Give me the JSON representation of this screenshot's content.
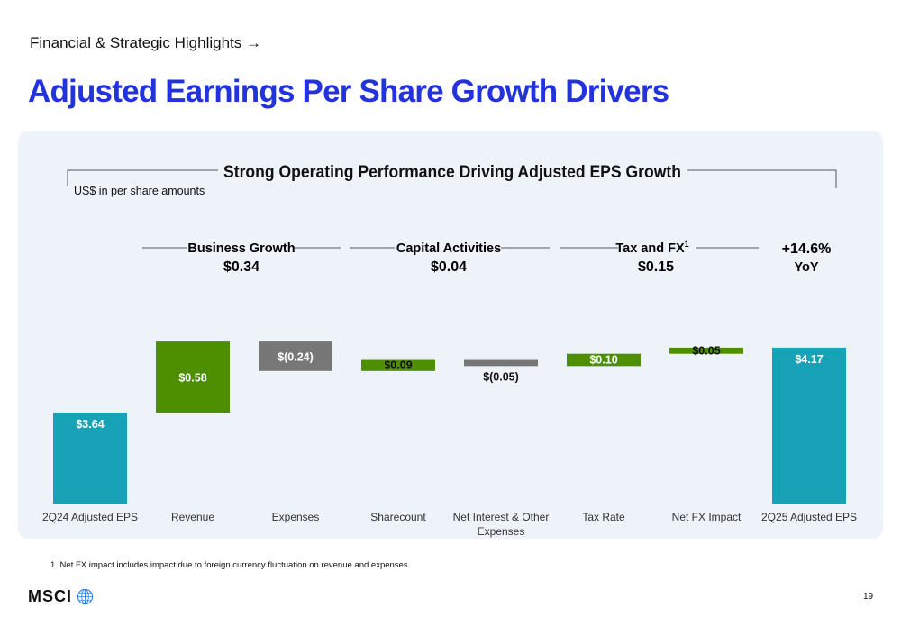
{
  "breadcrumb": "Financial & Strategic Highlights →",
  "title": "Adjusted Earnings Per Share Growth Drivers",
  "footnote": "1. Net FX impact includes impact due to foreign currency fluctuation on revenue and expenses.",
  "logo_text": "MSCI",
  "page_number": "19",
  "colors": {
    "title_blue": "#2233dd",
    "teal": "#17a2b8",
    "green": "#4d8f00",
    "gray": "#777777",
    "panel_bg": "#eef2f9"
  },
  "icons": {
    "logo": "globe-icon"
  },
  "chart_data": {
    "type": "bar",
    "variant": "waterfall",
    "title": "Strong Operating Performance Driving Adjusted EPS Growth",
    "subtitle": "US$ in per share amounts",
    "categories": [
      "2Q24 Adjusted EPS",
      "Revenue",
      "Expenses",
      "Sharecount",
      "Net Interest & Other Expenses",
      "Tax Rate",
      "Net FX Impact",
      "2Q25 Adjusted EPS"
    ],
    "values": [
      3.64,
      0.58,
      -0.24,
      0.09,
      -0.05,
      0.1,
      0.05,
      4.17
    ],
    "kinds": [
      "total",
      "increase",
      "decrease",
      "increase",
      "decrease",
      "increase",
      "increase",
      "total"
    ],
    "labels": [
      "$3.64",
      "$0.58",
      "$(0.24)",
      "$0.09",
      "$(0.05)",
      "$0.10",
      "$0.05",
      "$4.17"
    ],
    "groups": [
      {
        "name": "Business Growth",
        "value": "$0.34",
        "superscript": ""
      },
      {
        "name": "Capital Activities",
        "value": "$0.04",
        "superscript": ""
      },
      {
        "name": "Tax and FX",
        "value": "$0.15",
        "superscript": "1"
      }
    ],
    "summary": {
      "value": "+14.6%",
      "label": "YoY"
    },
    "axis_min": 2.9,
    "axis_max": 4.25
  }
}
